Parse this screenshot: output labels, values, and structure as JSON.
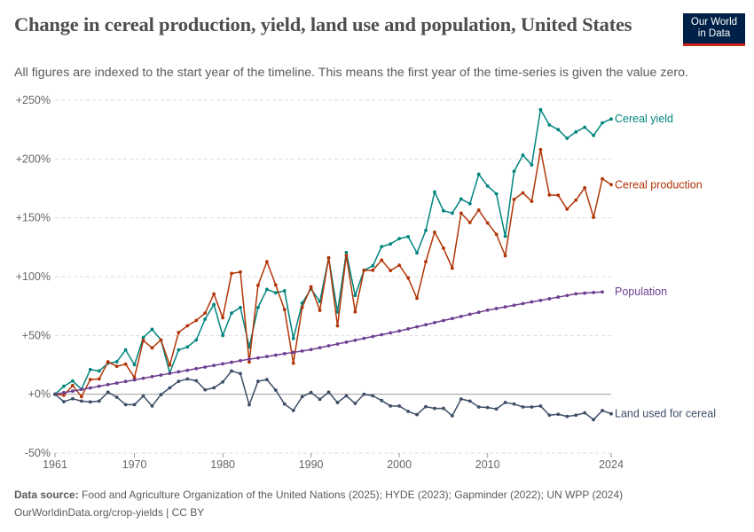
{
  "header": {
    "title": "Change in cereal production, yield, land use and population, United States",
    "subtitle": "All figures are indexed to the start year of the timeline. This means the first year of the time-series is given the value zero.",
    "logo_text": [
      "Our World",
      "in Data"
    ]
  },
  "footer": {
    "source_label": "Data source:",
    "source_text": "Food and Agriculture Organization of the United Nations (2025); HYDE (2023); Gapminder (2022); UN WPP (2024)",
    "link_text": "OurWorldinData.org/crop-yields | CC BY"
  },
  "chart_data": {
    "type": "line",
    "title": "Change in cereal production, yield, land use and population, United States",
    "xlabel": "",
    "ylabel": "",
    "xlim": [
      1961,
      2024
    ],
    "ylim": [
      -50,
      250
    ],
    "x_ticks": [
      "1961",
      "1970",
      "1980",
      "1990",
      "2000",
      "2010",
      "2024"
    ],
    "y_ticks": [
      {
        "value": -50,
        "label": "-50%"
      },
      {
        "value": 0,
        "label": "+0%"
      },
      {
        "value": 50,
        "label": "+50%"
      },
      {
        "value": 100,
        "label": "+100%"
      },
      {
        "value": 150,
        "label": "+150%"
      },
      {
        "value": 200,
        "label": "+200%"
      },
      {
        "value": 250,
        "label": "+250%"
      }
    ],
    "grid": "horizontal dashed",
    "legend": "right (inline labels at line ends)",
    "series": [
      {
        "name": "Cereal yield",
        "color": "#00847e",
        "start_year": 1961,
        "values": [
          0,
          6.8,
          11.3,
          4.3,
          21,
          19.8,
          26.4,
          27.6,
          37.7,
          25.1,
          48.2,
          55.2,
          46.2,
          18.1,
          37.7,
          40.2,
          46.2,
          63.8,
          76.3,
          50,
          69,
          73.8,
          40.2,
          73.8,
          89.1,
          86.3,
          87.9,
          47.4,
          77.6,
          89.6,
          78.8,
          116,
          70,
          120.5,
          84,
          105.4,
          109.2,
          125.5,
          127.8,
          132.3,
          134,
          120.2,
          139.3,
          172,
          156,
          154,
          166,
          162,
          187,
          177,
          170.4,
          134.3,
          189.5,
          203.3,
          195,
          242,
          229,
          225,
          217.6,
          223,
          227,
          220,
          230.7,
          234
        ]
      },
      {
        "name": "Cereal production",
        "color": "#b13507",
        "start_year": 1961,
        "values": [
          0,
          -0.8,
          7.5,
          -2,
          12.5,
          13,
          27.6,
          23.8,
          25.6,
          14.3,
          45.7,
          39.4,
          46.2,
          24.8,
          52.5,
          58.2,
          62.8,
          69,
          85.3,
          65,
          102.7,
          103.9,
          27.4,
          92.6,
          112.7,
          92.9,
          72,
          26.4,
          73.8,
          91.4,
          71.3,
          116,
          58.2,
          118,
          70,
          105.4,
          105.4,
          114,
          105.2,
          109.7,
          98.9,
          81.6,
          112.7,
          137.8,
          124.2,
          107.2,
          154,
          146,
          156.6,
          145.6,
          136,
          117.7,
          165.7,
          171.2,
          164,
          208,
          169.4,
          169.2,
          157.4,
          165,
          175.5,
          150.4,
          183.2,
          178.2
        ]
      },
      {
        "name": "Population",
        "color": "#6d3e91",
        "start_year": 1961,
        "values": [
          0,
          1.4,
          2.7,
          4.1,
          5.4,
          6.8,
          8.2,
          9.5,
          10.9,
          12.2,
          13.6,
          15,
          16.3,
          17.7,
          19.1,
          20.4,
          21.8,
          23.1,
          24.5,
          25.9,
          27.2,
          28.6,
          29.8,
          30.9,
          32.1,
          33.3,
          34.5,
          35.6,
          36.8,
          38,
          39.6,
          41.2,
          42.7,
          44.3,
          45.9,
          47.5,
          49.1,
          50.6,
          52.2,
          53.8,
          55.6,
          57.3,
          59.1,
          60.9,
          62.7,
          64.4,
          66.2,
          68,
          69.7,
          71.5,
          72.9,
          74.3,
          75.7,
          77.1,
          78.5,
          79.8,
          81.2,
          82.6,
          84,
          85.4,
          86,
          86.5,
          87
        ]
      },
      {
        "name": "Land used for cereal",
        "color": "#3c4e66",
        "start_year": 1961,
        "values": [
          0,
          -6.3,
          -3.8,
          -5.8,
          -6.5,
          -5.8,
          1.8,
          -2.5,
          -8.8,
          -8.8,
          -1.5,
          -10,
          -0.3,
          5.5,
          11,
          13,
          11.5,
          3.8,
          5.5,
          10.5,
          19.8,
          17.6,
          -9,
          11,
          12.5,
          3.5,
          -8.3,
          -13.8,
          -2,
          1.5,
          -4.3,
          1.8,
          -7,
          -1.3,
          -7.8,
          0,
          -1.3,
          -5.3,
          -10,
          -10,
          -14.6,
          -17.3,
          -10.5,
          -12,
          -12,
          -18.3,
          -4,
          -5.8,
          -10.8,
          -11.3,
          -12.5,
          -7,
          -8.3,
          -10.8,
          -10.8,
          -10,
          -17.8,
          -17,
          -18.8,
          -17.8,
          -15.8,
          -21.6,
          -13.8,
          -16.6
        ]
      }
    ]
  }
}
